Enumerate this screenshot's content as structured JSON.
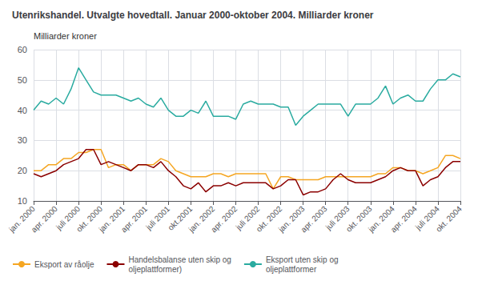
{
  "chart_data": {
    "type": "line",
    "title": "Utenrikshandel. Utvalgte hovedtall. Januar 2000-oktober 2004. Milliarder kroner",
    "ylabel": "Milliarder kroner",
    "categories": [
      "jan. 2000",
      null,
      null,
      "apr. 2000",
      null,
      null,
      "juli 2000",
      null,
      null,
      "okt. 2000",
      null,
      null,
      "jan. 2001",
      null,
      null,
      "apr. 2001",
      null,
      null,
      "juli 2001",
      null,
      null,
      "okt.2001",
      null,
      null,
      "jan. 2002",
      null,
      null,
      "apr. 2002",
      null,
      null,
      "juli 2002",
      null,
      null,
      "okt. 2002",
      null,
      null,
      "jan. 2003",
      null,
      null,
      "apr. 2003",
      null,
      null,
      "juli 2003",
      null,
      null,
      "okt. 2003",
      null,
      null,
      "jan. 2004",
      null,
      null,
      "apr. 2004",
      null,
      null,
      "juli 2004",
      null,
      null,
      "okt. 2004"
    ],
    "series": [
      {
        "name": "Eksport av råolje",
        "color": "#F5A623",
        "values": [
          20,
          20,
          22,
          22,
          24,
          24,
          26,
          26,
          27,
          27,
          21,
          22,
          22,
          20,
          22,
          22,
          22,
          24,
          23,
          20,
          19,
          18,
          18,
          18,
          19,
          19,
          18,
          19,
          19,
          19,
          19,
          19,
          14,
          18,
          18,
          17,
          17,
          17,
          17,
          18,
          18,
          18,
          18,
          18,
          18,
          18,
          19,
          19,
          21,
          21,
          20,
          20,
          19,
          20,
          21,
          25,
          25,
          24
        ]
      },
      {
        "name": "Handelsbalanse uten skip og\noljeplattformer)",
        "color": "#8B0000",
        "values": [
          19,
          18,
          19,
          20,
          22,
          23,
          24,
          27,
          27,
          22,
          23,
          22,
          21,
          20,
          22,
          22,
          21,
          23,
          20,
          18,
          15,
          14,
          16,
          13,
          15,
          15,
          16,
          15,
          16,
          16,
          16,
          16,
          14,
          15,
          17,
          17,
          12,
          13,
          13,
          14,
          17,
          19,
          17,
          16,
          16,
          16,
          17,
          18,
          20,
          21,
          20,
          20,
          15,
          17,
          18,
          21,
          23,
          23
        ]
      },
      {
        "name": "Eksport uten skip og\noljeplattformer",
        "color": "#2AABA0",
        "values": [
          40,
          43,
          42,
          44,
          42,
          47,
          54,
          50,
          46,
          45,
          45,
          45,
          44,
          43,
          44,
          42,
          41,
          44,
          40,
          38,
          38,
          40,
          39,
          43,
          38,
          38,
          38,
          37,
          42,
          43,
          42,
          42,
          42,
          41,
          41,
          35,
          38,
          40,
          42,
          42,
          42,
          42,
          38,
          42,
          42,
          42,
          44,
          48,
          42,
          44,
          45,
          43,
          43,
          47,
          50,
          50,
          52,
          51
        ]
      }
    ],
    "ylim": [
      10,
      60
    ],
    "yticks": [
      10,
      20,
      30,
      40,
      50,
      60
    ],
    "grid": true,
    "legend": "bottom"
  }
}
